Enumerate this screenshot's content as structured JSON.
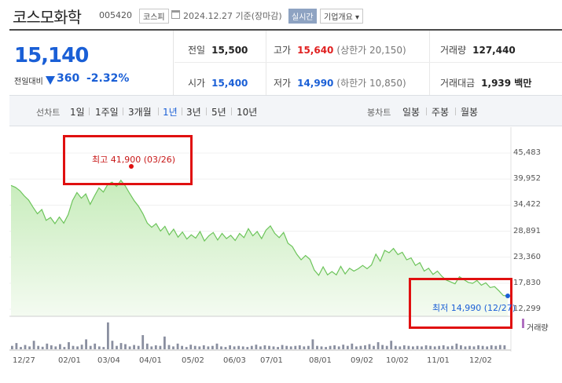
{
  "header": {
    "name": "코스모화학",
    "code": "005420",
    "market": "코스피",
    "date": "2024.12.27 기준(장마감)",
    "realtime": "실시간",
    "company_info": "기업개요 ▾"
  },
  "price": {
    "current": "15,140",
    "change_label": "전일대비",
    "change": "360",
    "change_pct": "-2.32%",
    "direction": "down"
  },
  "stats": {
    "prev_label": "전일",
    "prev": "15,500",
    "high_label": "고가",
    "high": "15,640",
    "upper_limit": "(상한가 20,150)",
    "volume_label": "거래량",
    "volume": "127,440",
    "open_label": "시가",
    "open": "15,400",
    "low_label": "저가",
    "low": "14,990",
    "lower_limit": "(하한가 10,850)",
    "amount_label": "거래대금",
    "amount": "1,939 백만"
  },
  "period_bar": {
    "line_label": "선차트",
    "line_items": [
      "1일",
      "1주일",
      "3개월",
      "1년",
      "3년",
      "5년",
      "10년"
    ],
    "active": "1년",
    "candle_label": "봉차트",
    "candle_items": [
      "일봉",
      "주봉",
      "월봉"
    ]
  },
  "chart_data": {
    "type": "area",
    "colors": {
      "line": "#6cc45a",
      "fill_top": "#c7ecbb",
      "fill_bottom": "#f4fbf1",
      "hi": "#e01010",
      "lo": "#1a5fd6"
    },
    "y_ticks": [
      "45,483",
      "39,952",
      "34,422",
      "28,891",
      "23,360",
      "17,830",
      "12,299"
    ],
    "y_values": [
      45483,
      39952,
      34422,
      28891,
      23360,
      17830,
      12299
    ],
    "x_ticks": [
      "12/27",
      "02/01",
      "03/04",
      "04/01",
      "05/02",
      "06/03",
      "07/01",
      "08/01",
      "09/02",
      "10/02",
      "11/01",
      "12/02"
    ],
    "high_label": "최고 41,900 (03/26)",
    "low_label": "최저 14,990 (12/27)",
    "volume_label": "거래량",
    "ylim": [
      12299,
      45483
    ],
    "price_series": [
      38600,
      38200,
      37500,
      36400,
      35500,
      34000,
      32600,
      33500,
      31200,
      31800,
      30500,
      31900,
      30600,
      32400,
      35400,
      37100,
      35900,
      36800,
      34600,
      36400,
      38100,
      37200,
      38800,
      39300,
      38400,
      39700,
      38500,
      36900,
      35400,
      34200,
      32600,
      30600,
      29700,
      30500,
      28900,
      29900,
      28100,
      29300,
      27600,
      28700,
      27200,
      28100,
      27400,
      28800,
      26800,
      27900,
      28600,
      27000,
      28400,
      27300,
      28000,
      26900,
      28400,
      27500,
      29400,
      27900,
      28800,
      27300,
      29100,
      30000,
      28400,
      27500,
      28600,
      26300,
      25600,
      24000,
      22800,
      23700,
      22900,
      20600,
      19500,
      21300,
      19600,
      20300,
      19600,
      21400,
      19800,
      21000,
      20400,
      20900,
      21600,
      20900,
      21700,
      24000,
      22500,
      24800,
      24300,
      25200,
      23900,
      24400,
      22800,
      23200,
      21600,
      22200,
      20400,
      21000,
      19700,
      20400,
      19300,
      18500,
      18100,
      17700,
      19200,
      18600,
      18000,
      17800,
      18400,
      17400,
      17900,
      16900,
      17100,
      16200,
      15200,
      15140
    ],
    "volume_series": [
      0.12,
      0.22,
      0.08,
      0.15,
      0.1,
      0.3,
      0.12,
      0.09,
      0.2,
      0.14,
      0.1,
      0.18,
      0.08,
      0.25,
      0.12,
      0.1,
      0.16,
      0.35,
      0.12,
      0.2,
      0.1,
      0.08,
      0.95,
      0.3,
      0.12,
      0.22,
      0.18,
      0.1,
      0.15,
      0.12,
      0.5,
      0.2,
      0.1,
      0.14,
      0.12,
      0.45,
      0.15,
      0.1,
      0.2,
      0.12,
      0.08,
      0.16,
      0.12,
      0.1,
      0.14,
      0.1,
      0.12,
      0.2,
      0.1,
      0.08,
      0.14,
      0.1,
      0.12,
      0.1,
      0.08,
      0.12,
      0.16,
      0.1,
      0.14,
      0.12,
      0.1,
      0.08,
      0.15,
      0.12,
      0.1,
      0.12,
      0.14,
      0.1,
      0.12,
      0.35,
      0.12,
      0.1,
      0.08,
      0.12,
      0.14,
      0.1,
      0.16,
      0.12,
      0.2,
      0.1,
      0.12,
      0.14,
      0.18,
      0.12,
      0.25,
      0.15,
      0.12,
      0.3,
      0.12,
      0.1,
      0.14,
      0.12,
      0.1,
      0.12,
      0.1,
      0.14,
      0.12,
      0.1,
      0.12,
      0.14,
      0.1,
      0.12,
      0.2,
      0.14,
      0.1,
      0.12,
      0.1,
      0.14,
      0.12,
      0.1,
      0.14,
      0.12,
      0.15,
      0.14
    ]
  }
}
